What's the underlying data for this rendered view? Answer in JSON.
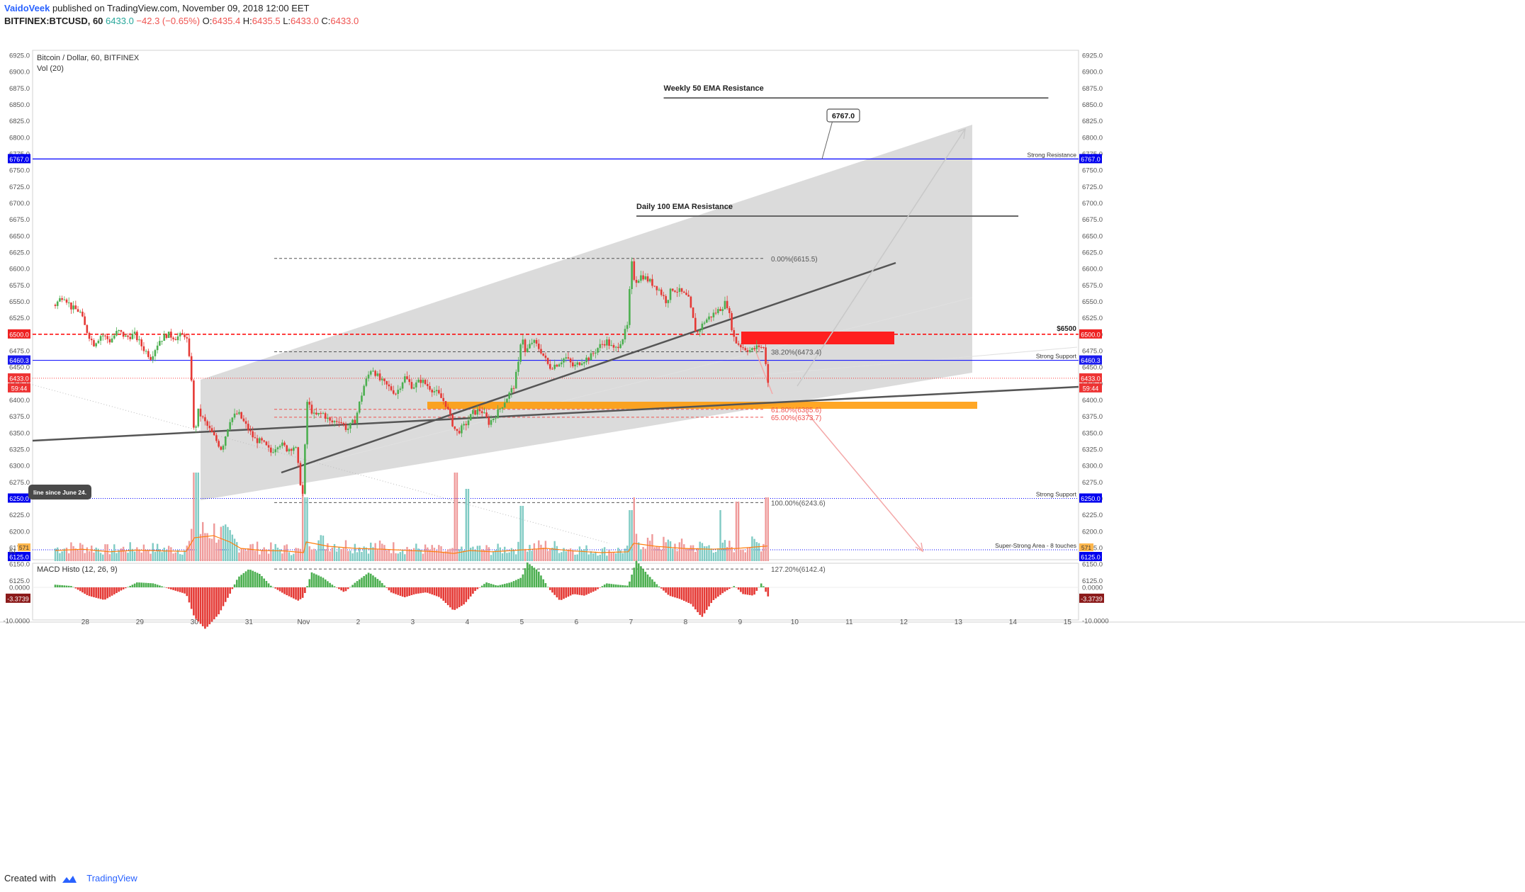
{
  "header": {
    "author": "VaidoVeek",
    "published": "published on TradingView.com, November 09, 2018 12:00 EET",
    "symbol": "BITFINEX:BTCUSD, 60",
    "last": "6433.0",
    "change": "−42.3 (−0.65%)",
    "o_label": "O:",
    "o": "6435.4",
    "h_label": "H:",
    "h": "6435.5",
    "l_label": "L:",
    "l": "6433.0",
    "c_label": "C:",
    "c": "6433.0"
  },
  "footer": {
    "created_with": "Created with",
    "brand": "TradingView"
  },
  "colors": {
    "up": "#26a69a",
    "down": "#ef5350",
    "bull_candle": "#4caf50",
    "bear_candle": "#e53935",
    "channel": "#cccccc",
    "trend_line": "#555555",
    "resistance_blue": "#0000ff",
    "support_red": "#ff0000",
    "orange_zone": "#ff9800",
    "red_zone": "#ff1f1f",
    "macd_up": "#4caf50",
    "macd_down": "#e53935",
    "vol_up": "#80cbc4",
    "vol_down": "#ef9a9a",
    "vol_ma": "#ff7f0e"
  },
  "chart_data": [
    {
      "type": "candlestick",
      "title": "Bitcoin / Dollar, 60, BITFINEX",
      "study": "Vol (20)",
      "grid": false,
      "ylim": [
        6125,
        6925
      ],
      "y_ticks": [
        "6925.0",
        "6900.0",
        "6875.0",
        "6850.0",
        "6825.0",
        "6800.0",
        "6775.0",
        "6750.0",
        "6725.0",
        "6700.0",
        "6675.0",
        "6650.0",
        "6625.0",
        "6600.0",
        "6575.0",
        "6550.0",
        "6525.0",
        "6500.0",
        "6475.0",
        "6450.0",
        "6425.0",
        "6400.0",
        "6375.0",
        "6350.0",
        "6325.0",
        "6300.0",
        "6275.0",
        "6250.0",
        "6225.0",
        "6200.0",
        "6175.0",
        "6150.0",
        "6125.0"
      ],
      "x_range": [
        27.4,
        15.5
      ],
      "x_ticks": [
        {
          "label": "28",
          "x": 0.55
        },
        {
          "label": "29",
          "x": 1.55
        },
        {
          "label": "30",
          "x": 2.55
        },
        {
          "label": "31",
          "x": 3.55
        },
        {
          "label": "Nov",
          "x": 4.55
        },
        {
          "label": "2",
          "x": 5.55
        },
        {
          "label": "3",
          "x": 6.55
        },
        {
          "label": "4",
          "x": 7.55
        },
        {
          "label": "5",
          "x": 8.55
        },
        {
          "label": "6",
          "x": 9.55
        },
        {
          "label": "7",
          "x": 10.55
        },
        {
          "label": "8",
          "x": 11.55
        },
        {
          "label": "9",
          "x": 12.55
        },
        {
          "label": "10",
          "x": 13.55
        },
        {
          "label": "11",
          "x": 14.55
        },
        {
          "label": "12",
          "x": 15.55
        },
        {
          "label": "13",
          "x": 16.55
        },
        {
          "label": "14",
          "x": 17.55
        },
        {
          "label": "15",
          "x": 18.55
        }
      ],
      "price_path": [
        [
          0.0,
          6545
        ],
        [
          0.15,
          6560
        ],
        [
          0.3,
          6540
        ],
        [
          0.45,
          6535
        ],
        [
          0.55,
          6510
        ],
        [
          0.7,
          6485
        ],
        [
          0.85,
          6500
        ],
        [
          1.0,
          6490
        ],
        [
          1.15,
          6505
        ],
        [
          1.3,
          6495
        ],
        [
          1.45,
          6500
        ],
        [
          1.6,
          6480
        ],
        [
          1.75,
          6465
        ],
        [
          1.9,
          6490
        ],
        [
          2.05,
          6500
        ],
        [
          2.2,
          6495
        ],
        [
          2.4,
          6500
        ],
        [
          2.5,
          6430
        ],
        [
          2.55,
          6330
        ],
        [
          2.6,
          6385
        ],
        [
          2.75,
          6365
        ],
        [
          2.9,
          6345
        ],
        [
          3.05,
          6325
        ],
        [
          3.2,
          6370
        ],
        [
          3.35,
          6380
        ],
        [
          3.5,
          6360
        ],
        [
          3.65,
          6340
        ],
        [
          3.8,
          6335
        ],
        [
          3.95,
          6320
        ],
        [
          4.1,
          6335
        ],
        [
          4.25,
          6325
        ],
        [
          4.4,
          6330
        ],
        [
          4.5,
          6270
        ],
        [
          4.55,
          6250
        ],
        [
          4.6,
          6400
        ],
        [
          4.75,
          6375
        ],
        [
          4.9,
          6380
        ],
        [
          5.05,
          6365
        ],
        [
          5.2,
          6370
        ],
        [
          5.35,
          6355
        ],
        [
          5.5,
          6370
        ],
        [
          5.65,
          6420
        ],
        [
          5.8,
          6450
        ],
        [
          5.95,
          6430
        ],
        [
          6.1,
          6420
        ],
        [
          6.25,
          6410
        ],
        [
          6.4,
          6435
        ],
        [
          6.55,
          6420
        ],
        [
          6.7,
          6430
        ],
        [
          6.85,
          6420
        ],
        [
          7.0,
          6410
        ],
        [
          7.15,
          6395
        ],
        [
          7.25,
          6370
        ],
        [
          7.35,
          6350
        ],
        [
          7.5,
          6360
        ],
        [
          7.65,
          6380
        ],
        [
          7.8,
          6385
        ],
        [
          7.95,
          6365
        ],
        [
          8.1,
          6380
        ],
        [
          8.25,
          6400
        ],
        [
          8.4,
          6420
        ],
        [
          8.5,
          6460
        ],
        [
          8.55,
          6510
        ],
        [
          8.6,
          6470
        ],
        [
          8.75,
          6490
        ],
        [
          8.9,
          6475
        ],
        [
          9.05,
          6450
        ],
        [
          9.2,
          6455
        ],
        [
          9.35,
          6465
        ],
        [
          9.5,
          6450
        ],
        [
          9.65,
          6460
        ],
        [
          9.8,
          6465
        ],
        [
          9.95,
          6480
        ],
        [
          10.1,
          6490
        ],
        [
          10.25,
          6475
        ],
        [
          10.4,
          6495
        ],
        [
          10.5,
          6515
        ],
        [
          10.55,
          6615
        ],
        [
          10.62,
          6580
        ],
        [
          10.75,
          6590
        ],
        [
          10.9,
          6580
        ],
        [
          11.05,
          6570
        ],
        [
          11.2,
          6550
        ],
        [
          11.3,
          6570
        ],
        [
          11.45,
          6565
        ],
        [
          11.6,
          6555
        ],
        [
          11.75,
          6500
        ],
        [
          11.9,
          6520
        ],
        [
          12.05,
          6530
        ],
        [
          12.2,
          6540
        ],
        [
          12.3,
          6550
        ],
        [
          12.45,
          6490
        ],
        [
          12.6,
          6480
        ],
        [
          12.75,
          6475
        ],
        [
          12.9,
          6482
        ],
        [
          13.0,
          6478
        ],
        [
          13.05,
          6430
        ],
        [
          13.1,
          6413
        ]
      ],
      "volume_ma_path": [
        [
          0.0,
          0.25
        ],
        [
          0.5,
          0.28
        ],
        [
          1.0,
          0.22
        ],
        [
          1.5,
          0.26
        ],
        [
          2.0,
          0.24
        ],
        [
          2.4,
          0.23
        ],
        [
          2.55,
          0.55
        ],
        [
          2.9,
          0.6
        ],
        [
          3.2,
          0.45
        ],
        [
          3.4,
          0.3
        ],
        [
          3.8,
          0.25
        ],
        [
          4.2,
          0.24
        ],
        [
          4.55,
          0.2
        ],
        [
          4.6,
          0.45
        ],
        [
          5.0,
          0.35
        ],
        [
          5.5,
          0.3
        ],
        [
          6.0,
          0.28
        ],
        [
          6.5,
          0.25
        ],
        [
          7.0,
          0.22
        ],
        [
          7.3,
          0.18
        ],
        [
          7.6,
          0.25
        ],
        [
          8.0,
          0.22
        ],
        [
          8.5,
          0.26
        ],
        [
          9.0,
          0.3
        ],
        [
          9.5,
          0.24
        ],
        [
          10.0,
          0.2
        ],
        [
          10.5,
          0.22
        ],
        [
          10.6,
          0.42
        ],
        [
          11.0,
          0.35
        ],
        [
          11.5,
          0.3
        ],
        [
          12.0,
          0.28
        ],
        [
          12.5,
          0.3
        ],
        [
          13.0,
          0.35
        ],
        [
          13.1,
          0.36
        ]
      ],
      "volume_spikes": [
        [
          2.55,
          3.2
        ],
        [
          2.6,
          2.5
        ],
        [
          4.55,
          1.8
        ],
        [
          4.6,
          1.5
        ],
        [
          7.35,
          3.3
        ],
        [
          7.55,
          1.7
        ],
        [
          8.55,
          1.3
        ],
        [
          10.55,
          1.2
        ],
        [
          10.6,
          1.5
        ],
        [
          12.2,
          1.2
        ],
        [
          12.5,
          1.4
        ],
        [
          13.05,
          1.5
        ]
      ],
      "drawings": {
        "weekly_ema": {
          "label": "Weekly 50 EMA Resistance",
          "price": 6860,
          "x0": 11.15,
          "x1": 18.2
        },
        "daily_ema": {
          "label": "Daily 100 EMA Resistance",
          "price": 6680,
          "x0": 10.65,
          "x1": 17.65
        },
        "strong_resistance": {
          "label": "Strong Resistance",
          "price": 6767.0,
          "tag": "6767.0",
          "callout": "6767.0"
        },
        "level_6500": {
          "label": "$6500",
          "price": 6500.0,
          "tag": "6500.0"
        },
        "strong_support_1": {
          "label": "Strong Support",
          "price": 6460.3,
          "tag": "6460.3"
        },
        "last_price": {
          "tag": "6433.0",
          "countdown": "59:44",
          "price": 6433.0
        },
        "strong_support_2": {
          "label": "Strong Support",
          "price": 6250.0,
          "tag": "6250.0"
        },
        "super_strong": {
          "label": "Super-Strong Area - 8 touches",
          "price": 6130,
          "tag": "6125.0",
          "vol_tag": "571"
        },
        "fib": [
          {
            "label": "0.00%(6615.5)",
            "price": 6615.5,
            "color": "#555555"
          },
          {
            "label": "38.20%(6473.4)",
            "price": 6473.4,
            "color": "#555555"
          },
          {
            "label": "61.80%(6385.6)",
            "price": 6385.6,
            "color": "#ef5350"
          },
          {
            "label": "65.00%(6373.7)",
            "price": 6373.7,
            "color": "#ef5350"
          },
          {
            "label": "100.00%(6243.6)",
            "price": 6243.6,
            "color": "#555555"
          },
          {
            "label": "127.20%(6142.4)",
            "price": 6142.4,
            "color": "#555555"
          }
        ],
        "note": "line since June 24.",
        "left_tick_partial": "61"
      }
    },
    {
      "type": "histogram",
      "title": "MACD Histo (12, 26, 9)",
      "ylim": [
        -14,
        6
      ],
      "y_ticks": [
        "0.0000",
        "-10.0000"
      ],
      "last_value": "-3.3739",
      "series": [
        [
          0.0,
          0.8
        ],
        [
          0.3,
          0.4
        ],
        [
          0.6,
          -2.5
        ],
        [
          0.9,
          -3.8
        ],
        [
          1.2,
          -1.0
        ],
        [
          1.5,
          1.5
        ],
        [
          1.8,
          1.2
        ],
        [
          2.1,
          -0.5
        ],
        [
          2.4,
          -2.0
        ],
        [
          2.55,
          -9
        ],
        [
          2.75,
          -12.5
        ],
        [
          3.0,
          -8
        ],
        [
          3.2,
          -2
        ],
        [
          3.35,
          3
        ],
        [
          3.55,
          5.5
        ],
        [
          3.75,
          4
        ],
        [
          3.95,
          0.5
        ],
        [
          4.2,
          -2
        ],
        [
          4.45,
          -4
        ],
        [
          4.55,
          -3
        ],
        [
          4.7,
          4.5
        ],
        [
          4.9,
          3
        ],
        [
          5.1,
          0.5
        ],
        [
          5.3,
          -1.5
        ],
        [
          5.5,
          1.5
        ],
        [
          5.75,
          4.5
        ],
        [
          5.95,
          2
        ],
        [
          6.15,
          -1.5
        ],
        [
          6.4,
          -3
        ],
        [
          6.6,
          -2
        ],
        [
          6.8,
          -1.5
        ],
        [
          7.05,
          -3
        ],
        [
          7.3,
          -7
        ],
        [
          7.5,
          -5
        ],
        [
          7.7,
          -1
        ],
        [
          7.9,
          1.5
        ],
        [
          8.1,
          0.5
        ],
        [
          8.35,
          1.5
        ],
        [
          8.55,
          3
        ],
        [
          8.65,
          7.5
        ],
        [
          8.85,
          5
        ],
        [
          9.05,
          -0.5
        ],
        [
          9.25,
          -4
        ],
        [
          9.5,
          -2
        ],
        [
          9.7,
          -2.5
        ],
        [
          9.9,
          -1
        ],
        [
          10.1,
          1.2
        ],
        [
          10.3,
          0.8
        ],
        [
          10.5,
          0.5
        ],
        [
          10.65,
          8
        ],
        [
          10.85,
          4
        ],
        [
          11.05,
          0.5
        ],
        [
          11.25,
          -2.5
        ],
        [
          11.45,
          -3.5
        ],
        [
          11.65,
          -5
        ],
        [
          11.85,
          -9
        ],
        [
          12.05,
          -4
        ],
        [
          12.25,
          -1.5
        ],
        [
          12.45,
          0.5
        ],
        [
          12.6,
          -2
        ],
        [
          12.8,
          -2.5
        ],
        [
          12.95,
          1.5
        ],
        [
          13.05,
          -2.5
        ],
        [
          13.1,
          -3.4
        ]
      ]
    }
  ]
}
